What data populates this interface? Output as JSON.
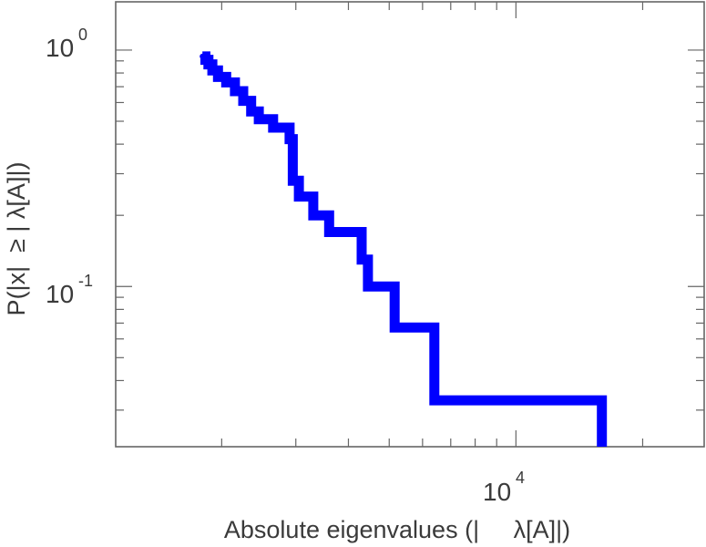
{
  "chart_data": {
    "type": "line",
    "xlabel": "Absolute eigenvalues (|     λ[A]|)",
    "ylabel": "P(|x|  ≥ | λ[A]|)",
    "x_scale": "log",
    "y_scale": "log",
    "xlim": [
      1120,
      28000
    ],
    "ylim": [
      0.021,
      1.6
    ],
    "grid": false,
    "x_ticks": [
      {
        "base": "10",
        "exp": "4",
        "value": 10000
      }
    ],
    "y_ticks": [
      {
        "base": "10",
        "exp": "0",
        "value": 1
      },
      {
        "base": "10",
        "exp": "-1",
        "value": 0.1
      }
    ],
    "series": [
      {
        "color": "#0000ff",
        "step": true,
        "x": [
          1800,
          1830,
          1860,
          1900,
          1960,
          2050,
          2150,
          2250,
          2350,
          2450,
          2650,
          2900,
          2950,
          3050,
          3300,
          3600,
          4300,
          4450,
          4700,
          5150,
          6400,
          16000
        ],
        "y": [
          0.94,
          0.91,
          0.87,
          0.82,
          0.77,
          0.73,
          0.67,
          0.61,
          0.55,
          0.51,
          0.47,
          0.42,
          0.28,
          0.24,
          0.2,
          0.17,
          0.13,
          0.1,
          0.1,
          0.067,
          0.033,
          0.022
        ]
      }
    ]
  }
}
